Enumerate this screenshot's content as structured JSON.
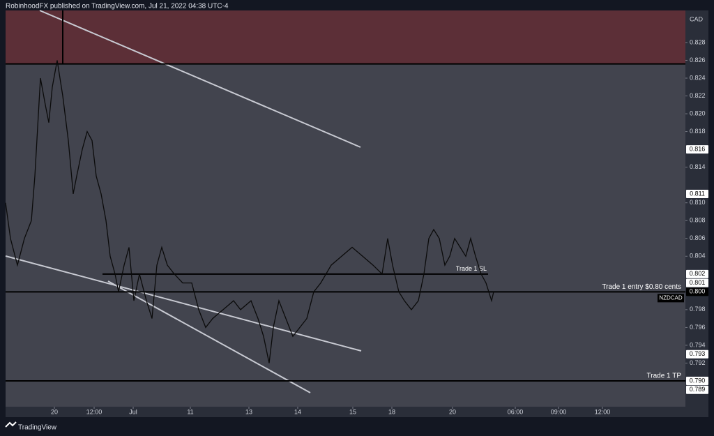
{
  "header": {
    "title": "RobinhoodFX published on TradingView.com, Jul 21, 2022 04:38 UTC-4"
  },
  "footer": {
    "brand": "TradingView"
  },
  "chart_data": {
    "type": "line",
    "currency": "CAD",
    "symbol": "NZDCAD",
    "color": "#0b0b0b",
    "xlim": [
      8,
      983
    ],
    "ylim": [
      0.7871,
      0.8316
    ],
    "xticks": [
      {
        "value": 78,
        "label": "20"
      },
      {
        "value": 135,
        "label": "12:00"
      },
      {
        "value": 191,
        "label": "Jul"
      },
      {
        "value": 273,
        "label": "11"
      },
      {
        "value": 357,
        "label": "13"
      },
      {
        "value": 427,
        "label": "14"
      },
      {
        "value": 506,
        "label": "15"
      },
      {
        "value": 562,
        "label": "18"
      },
      {
        "value": 649,
        "label": "20"
      },
      {
        "value": 739,
        "label": "06:00"
      },
      {
        "value": 801,
        "label": "09:00"
      },
      {
        "value": 864,
        "label": "12:00"
      }
    ],
    "yticks": [
      0.828,
      0.826,
      0.824,
      0.822,
      {
        "value": 0.82,
        "label": "0.820"
      },
      0.818,
      0.814,
      {
        "value": 0.81,
        "label": "0.810"
      },
      0.808,
      0.806,
      0.804,
      0.798,
      0.796,
      0.794,
      0.792
    ],
    "price_labels": [
      {
        "value": 0.816,
        "label": "0.816"
      },
      {
        "value": 0.811,
        "label": "0.811"
      },
      {
        "value": 0.802,
        "label": "0.802"
      },
      {
        "value": 0.801,
        "label": "0.801"
      },
      {
        "value": 0.8,
        "label": "0.800"
      },
      {
        "value": 0.793,
        "label": "0.793"
      },
      {
        "value": 0.79,
        "label": "0.790"
      },
      {
        "value": 0.789,
        "label": "0.789"
      }
    ],
    "zone": {
      "from": 0.8256,
      "color": "#5c2f37"
    },
    "levels": [
      {
        "value": 0.8256
      },
      {
        "value": 0.802,
        "label": "Trade 1 SL",
        "from": 147,
        "to": 700
      },
      {
        "value": 0.8,
        "label": "Trade 1 entry $0.80 cents"
      },
      {
        "value": 0.79,
        "label": "Trade 1 TP"
      }
    ],
    "x": [
      8,
      15,
      25,
      35,
      45,
      50,
      58,
      65,
      70,
      75,
      82,
      90,
      98,
      105,
      110,
      118,
      125,
      132,
      138,
      145,
      152,
      158,
      165,
      170,
      178,
      185,
      192,
      200,
      210,
      218,
      225,
      232,
      240,
      250,
      262,
      275,
      285,
      295,
      305,
      320,
      335,
      345,
      360,
      370,
      378,
      386,
      392,
      400,
      410,
      420,
      430,
      440,
      450,
      460,
      475,
      490,
      505,
      520,
      535,
      548,
      556,
      563,
      572,
      580,
      590,
      600,
      608,
      615,
      622,
      630,
      638,
      645,
      652,
      660,
      668,
      675,
      682,
      690,
      697,
      705,
      708
    ],
    "values": [
      0.81,
      0.806,
      0.803,
      0.806,
      0.808,
      0.813,
      0.824,
      0.821,
      0.819,
      0.823,
      0.826,
      0.822,
      0.817,
      0.811,
      0.813,
      0.816,
      0.818,
      0.817,
      0.813,
      0.811,
      0.808,
      0.804,
      0.802,
      0.8,
      0.803,
      0.805,
      0.799,
      0.802,
      0.799,
      0.797,
      0.803,
      0.805,
      0.803,
      0.802,
      0.801,
      0.801,
      0.798,
      0.796,
      0.797,
      0.798,
      0.799,
      0.798,
      0.799,
      0.797,
      0.795,
      0.792,
      0.796,
      0.799,
      0.797,
      0.795,
      0.796,
      0.797,
      0.8,
      0.801,
      0.803,
      0.804,
      0.805,
      0.804,
      0.803,
      0.802,
      0.806,
      0.803,
      0.8,
      0.799,
      0.798,
      0.799,
      0.802,
      0.806,
      0.807,
      0.806,
      0.803,
      0.804,
      0.806,
      0.805,
      0.804,
      0.806,
      0.804,
      0.802,
      0.801,
      0.799,
      0.8
    ]
  }
}
